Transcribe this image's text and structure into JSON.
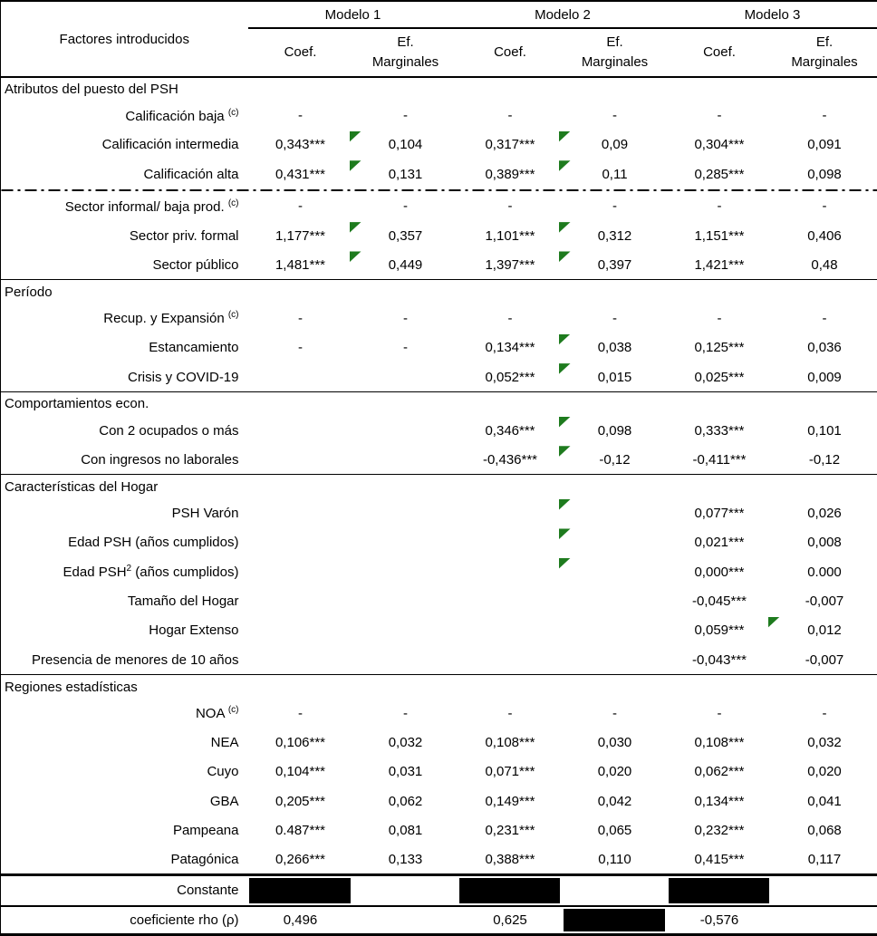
{
  "colors": {
    "flag_green": "#1e7b1e",
    "redaction": "#000000"
  },
  "table": {
    "header": {
      "factores": "Factores introducidos",
      "models": [
        "Modelo 1",
        "Modelo 2",
        "Modelo 3"
      ],
      "coef": "Coef.",
      "ef_line1": "Ef.",
      "ef_line2": "Marginales"
    },
    "columns": [
      "m1-coef",
      "m1-ef",
      "m2-coef",
      "m2-ef",
      "m3-coef",
      "m3-ef"
    ],
    "rows": [
      {
        "type": "section",
        "label": "Atributos del puesto del PSH"
      },
      {
        "type": "data",
        "parts": [
          {
            "t": "Calificación baja "
          },
          {
            "sup": "(c)"
          }
        ],
        "cells": [
          "-",
          "-",
          "-",
          "-",
          "-",
          "-"
        ]
      },
      {
        "type": "data",
        "parts": [
          {
            "t": "Calificación intermedia"
          }
        ],
        "cells": [
          "0,343***",
          "0,104",
          "0,317***",
          "0,09",
          "0,304***",
          "0,091"
        ],
        "flags": [
          1,
          3
        ]
      },
      {
        "type": "data",
        "parts": [
          {
            "t": "Calificación alta"
          }
        ],
        "cells": [
          "0,431***",
          "0,131",
          "0,389***",
          "0,11",
          "0,285***",
          "0,098"
        ],
        "flags": [
          1,
          3
        ],
        "divider": "dashdot"
      },
      {
        "type": "data",
        "parts": [
          {
            "t": "Sector informal/ baja prod. "
          },
          {
            "sup": "(c)"
          }
        ],
        "cells": [
          "-",
          "-",
          "-",
          "-",
          "-",
          "-"
        ]
      },
      {
        "type": "data",
        "parts": [
          {
            "t": "Sector priv. formal"
          }
        ],
        "cells": [
          "1,177***",
          "0,357",
          "1,101***",
          "0,312",
          "1,151***",
          "0,406"
        ],
        "flags": [
          1,
          3
        ]
      },
      {
        "type": "data",
        "parts": [
          {
            "t": "Sector público"
          }
        ],
        "cells": [
          "1,481***",
          "0,449",
          "1,397***",
          "0,397",
          "1,421***",
          "0,48"
        ],
        "flags": [
          1,
          3
        ]
      },
      {
        "type": "section",
        "label": "Período"
      },
      {
        "type": "data",
        "parts": [
          {
            "t": "Recup. y Expansión "
          },
          {
            "sup": "(c)"
          }
        ],
        "cells": [
          "-",
          "-",
          "-",
          "-",
          "-",
          "-"
        ]
      },
      {
        "type": "data",
        "parts": [
          {
            "t": "Estancamiento"
          }
        ],
        "cells": [
          "-",
          "-",
          "0,134***",
          "0,038",
          "0,125***",
          "0,036"
        ],
        "flags": [
          3
        ]
      },
      {
        "type": "data",
        "parts": [
          {
            "t": "Crisis y COVID-19"
          }
        ],
        "cells": [
          "",
          "",
          "0,052***",
          "0,015",
          "0,025***",
          "0,009"
        ],
        "flags": [
          3
        ]
      },
      {
        "type": "section",
        "label": "Comportamientos econ."
      },
      {
        "type": "data",
        "parts": [
          {
            "t": "Con 2 ocupados o más"
          }
        ],
        "cells": [
          "",
          "",
          "0,346***",
          "0,098",
          "0,333***",
          "0,101"
        ],
        "flags": [
          3
        ]
      },
      {
        "type": "data",
        "parts": [
          {
            "t": "Con ingresos no laborales"
          }
        ],
        "cells": [
          "",
          "",
          "-0,436***",
          "-0,12",
          "-0,411***",
          "-0,12"
        ],
        "flags": [
          3
        ]
      },
      {
        "type": "section",
        "label": "Características del Hogar"
      },
      {
        "type": "data",
        "parts": [
          {
            "t": "PSH Varón"
          }
        ],
        "cells": [
          "",
          "",
          "",
          "",
          "0,077***",
          "0,026"
        ],
        "flags": [
          3
        ]
      },
      {
        "type": "data",
        "parts": [
          {
            "t": "Edad PSH (años cumplidos)"
          }
        ],
        "cells": [
          "",
          "",
          "",
          "",
          "0,021***",
          "0,008"
        ],
        "flags": [
          3
        ]
      },
      {
        "type": "data",
        "parts": [
          {
            "t": "Edad PSH"
          },
          {
            "sup": "2"
          },
          {
            "t": " (años cumplidos)"
          }
        ],
        "cells": [
          "",
          "",
          "",
          "",
          "0,000***",
          "0.000"
        ],
        "flags": [
          3
        ]
      },
      {
        "type": "data",
        "parts": [
          {
            "t": "Tamaño del Hogar"
          }
        ],
        "cells": [
          "",
          "",
          "",
          "",
          "-0,045***",
          "-0,007"
        ]
      },
      {
        "type": "data",
        "parts": [
          {
            "t": "Hogar Extenso"
          }
        ],
        "cells": [
          "",
          "",
          "",
          "",
          "0,059***",
          "0,012"
        ],
        "flags": [
          5
        ]
      },
      {
        "type": "data",
        "parts": [
          {
            "t": "Presencia de menores de 10 años"
          }
        ],
        "cells": [
          "",
          "",
          "",
          "",
          "-0,043***",
          "-0,007"
        ]
      },
      {
        "type": "section",
        "label": "Regiones estadísticas"
      },
      {
        "type": "data",
        "parts": [
          {
            "t": "NOA "
          },
          {
            "sup": "(c)"
          }
        ],
        "cells": [
          "-",
          "-",
          "-",
          "-",
          "-",
          "-"
        ]
      },
      {
        "type": "data",
        "parts": [
          {
            "t": "NEA"
          }
        ],
        "cells": [
          "0,106***",
          "0,032",
          "0,108***",
          "0,030",
          "0,108***",
          "0,032"
        ]
      },
      {
        "type": "data",
        "parts": [
          {
            "t": "Cuyo"
          }
        ],
        "cells": [
          "0,104***",
          "0,031",
          "0,071***",
          "0,020",
          "0,062***",
          "0,020"
        ]
      },
      {
        "type": "data",
        "parts": [
          {
            "t": "GBA"
          }
        ],
        "cells": [
          "0,205***",
          "0,062",
          "0,149***",
          "0,042",
          "0,134***",
          "0,041"
        ]
      },
      {
        "type": "data",
        "parts": [
          {
            "t": "Pampeana"
          }
        ],
        "cells": [
          "0.487***",
          "0,081",
          "0,231***",
          "0,065",
          "0,232***",
          "0,068"
        ]
      },
      {
        "type": "data",
        "parts": [
          {
            "t": "Patagónica"
          }
        ],
        "cells": [
          "0,266***",
          "0,133",
          "0,388***",
          "0,110",
          "0,415***",
          "0,117"
        ]
      },
      {
        "type": "data",
        "cls": "constante-row",
        "parts": [
          {
            "t": "Constante"
          }
        ],
        "cells": [
          "",
          "",
          "",
          "",
          "",
          ""
        ],
        "redacted": [
          0,
          2,
          4
        ]
      },
      {
        "type": "data",
        "cls": "rho-row",
        "parts": [
          {
            "t": "coeficiente rho (ρ)"
          }
        ],
        "cells": [
          "0,496",
          "",
          "0,625",
          "",
          "-0,576",
          ""
        ],
        "redacted": [
          3
        ]
      }
    ]
  }
}
